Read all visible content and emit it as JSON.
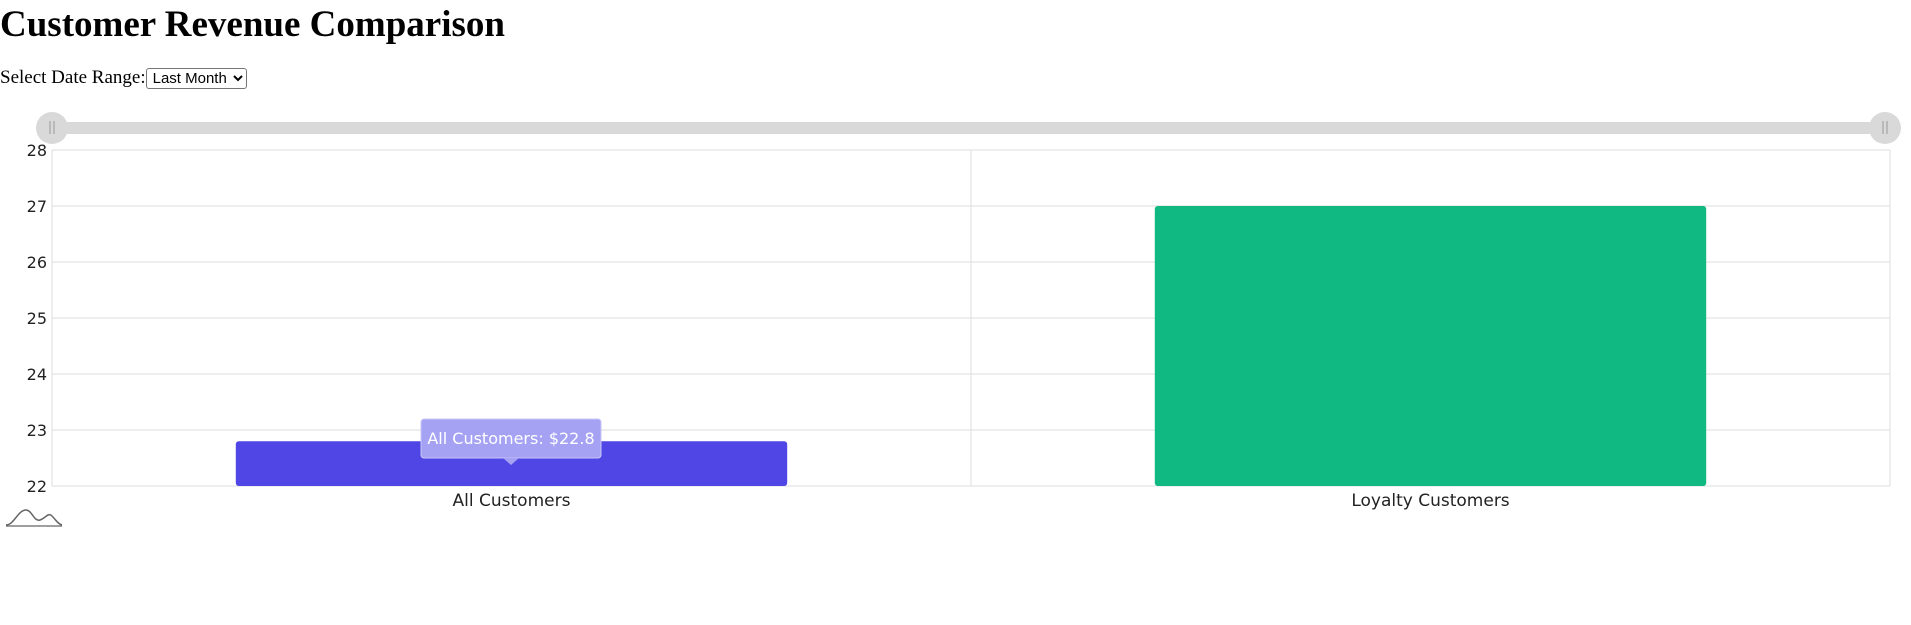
{
  "title": "Customer Revenue Comparison",
  "date_range": {
    "label": "Select Date Range:",
    "selected": "Last Month",
    "options": [
      "Last Month"
    ]
  },
  "tooltip": {
    "text": "All Customers: $22.8"
  },
  "colors": {
    "all_customers": "#4f46e5",
    "loyalty_customers": "#10b981",
    "grid": "#dddddd",
    "slider_track": "#d9d9d9",
    "tooltip_bg": "#a5a2f3"
  },
  "chart_data": {
    "type": "bar",
    "categories": [
      "All Customers",
      "Loyalty Customers"
    ],
    "values": [
      22.8,
      27
    ],
    "ylim": [
      22,
      28
    ],
    "yticks": [
      22,
      23,
      24,
      25,
      26,
      27,
      28
    ],
    "grid": true,
    "title": "",
    "xlabel": "",
    "ylabel": ""
  }
}
